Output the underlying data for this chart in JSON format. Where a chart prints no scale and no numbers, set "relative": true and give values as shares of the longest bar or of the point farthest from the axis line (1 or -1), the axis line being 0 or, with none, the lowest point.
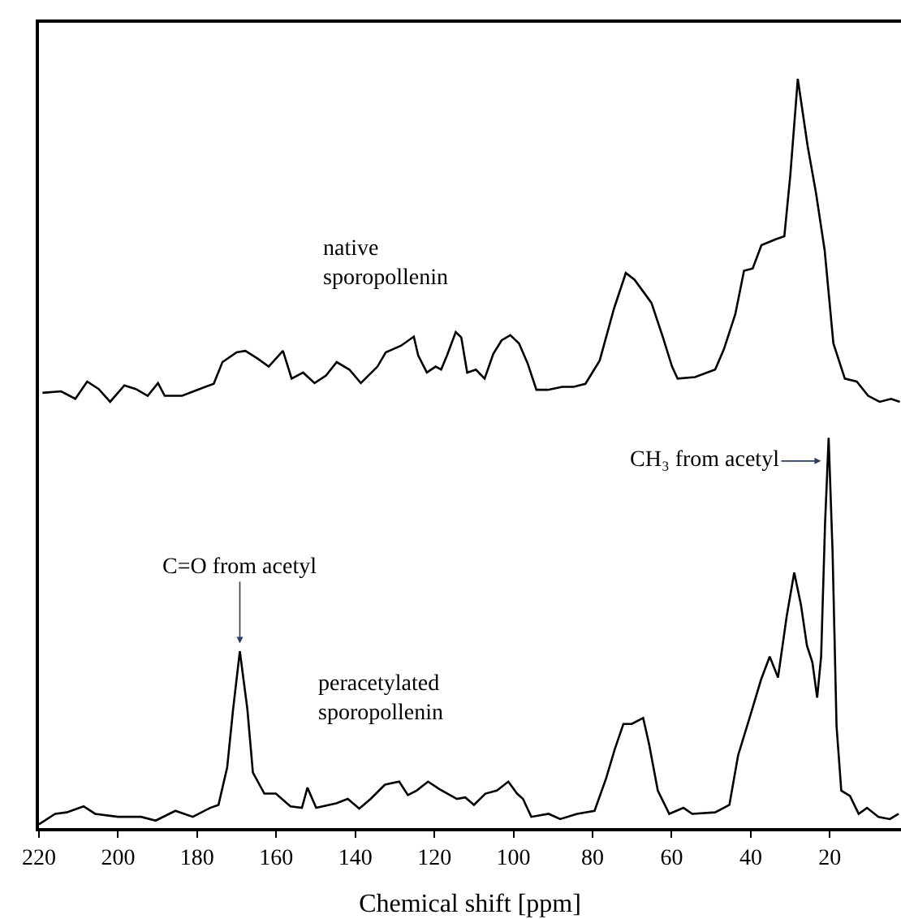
{
  "chart_data": {
    "type": "line",
    "relative": true,
    "xlabel": "Chemical shift [ppm]",
    "xlim": [
      220,
      2
    ],
    "xticks": [
      220,
      200,
      180,
      160,
      140,
      120,
      100,
      80,
      60,
      40,
      20
    ],
    "legend": false,
    "marker": "none",
    "line_style": "solid",
    "series": [
      {
        "name": "native sporopollenin",
        "color": "#000000",
        "x": [
          219.1,
          214.4,
          210.8,
          207.8,
          204.9,
          202.0,
          198.4,
          195.5,
          192.5,
          189.9,
          188.2,
          183.8,
          179.4,
          175.8,
          173.6,
          170.0,
          167.8,
          164.8,
          161.9,
          158.3,
          156.1,
          153.2,
          150.3,
          147.4,
          144.7,
          141.5,
          138.6,
          134.4,
          132.3,
          128.4,
          125.2,
          124.1,
          121.9,
          119.7,
          118.3,
          116.8,
          114.6,
          113.2,
          111.7,
          109.5,
          107.3,
          105.1,
          103.0,
          100.8,
          98.6,
          96.4,
          94.2,
          91.3,
          87.7,
          84.8,
          81.8,
          78.2,
          74.6,
          71.6,
          69.4,
          67.3,
          65.1,
          62.2,
          59.9,
          58.5,
          54.1,
          49.0,
          46.8,
          43.9,
          41.7,
          39.5,
          37.3,
          33.7,
          31.5,
          30.0,
          28.1,
          25.6,
          23.5,
          21.3,
          19.1,
          16.2,
          13.2,
          10.3,
          7.4,
          4.5,
          2.3
        ],
        "values": [
          0.581,
          0.583,
          0.573,
          0.596,
          0.586,
          0.569,
          0.591,
          0.586,
          0.577,
          0.594,
          0.577,
          0.577,
          0.586,
          0.593,
          0.622,
          0.635,
          0.637,
          0.627,
          0.616,
          0.637,
          0.6,
          0.608,
          0.594,
          0.604,
          0.622,
          0.612,
          0.594,
          0.616,
          0.635,
          0.644,
          0.656,
          0.631,
          0.608,
          0.616,
          0.612,
          0.631,
          0.662,
          0.655,
          0.608,
          0.612,
          0.6,
          0.633,
          0.651,
          0.658,
          0.647,
          0.62,
          0.585,
          0.585,
          0.589,
          0.589,
          0.593,
          0.624,
          0.693,
          0.741,
          0.732,
          0.717,
          0.701,
          0.655,
          0.616,
          0.6,
          0.602,
          0.612,
          0.639,
          0.686,
          0.744,
          0.747,
          0.778,
          0.786,
          0.79,
          0.871,
          1.0,
          0.91,
          0.848,
          0.771,
          0.647,
          0.6,
          0.596,
          0.577,
          0.569,
          0.573,
          0.569
        ]
      },
      {
        "name": "peracetylated sporopollenin",
        "color": "#000000",
        "x": [
          220.0,
          215.9,
          213.0,
          208.7,
          205.8,
          200.0,
          194.2,
          190.5,
          185.5,
          181.1,
          176.7,
          174.6,
          172.4,
          170.9,
          169.2,
          167.3,
          165.9,
          163.0,
          160.1,
          156.4,
          153.5,
          152.1,
          149.9,
          144.8,
          141.9,
          139.0,
          136.1,
          132.5,
          128.9,
          126.7,
          124.5,
          121.6,
          118.7,
          114.3,
          112.2,
          110.0,
          107.1,
          104.2,
          101.3,
          99.1,
          97.6,
          95.5,
          91.1,
          88.2,
          83.9,
          79.5,
          76.6,
          74.4,
          72.2,
          70.1,
          67.2,
          65.7,
          63.5,
          60.6,
          57.0,
          54.8,
          49.0,
          45.4,
          43.2,
          40.3,
          37.4,
          35.2,
          33.1,
          30.9,
          29.0,
          27.3,
          25.8,
          24.4,
          23.2,
          22.2,
          21.2,
          20.3,
          19.3,
          18.3,
          17.1,
          14.9,
          12.7,
          10.6,
          7.7,
          4.8,
          2.6
        ],
        "values": [
          0.005,
          0.019,
          0.021,
          0.029,
          0.019,
          0.015,
          0.015,
          0.01,
          0.023,
          0.015,
          0.027,
          0.031,
          0.081,
          0.159,
          0.236,
          0.159,
          0.074,
          0.046,
          0.046,
          0.029,
          0.027,
          0.054,
          0.027,
          0.033,
          0.039,
          0.026,
          0.039,
          0.058,
          0.062,
          0.044,
          0.05,
          0.062,
          0.052,
          0.039,
          0.041,
          0.031,
          0.046,
          0.05,
          0.062,
          0.046,
          0.039,
          0.015,
          0.019,
          0.012,
          0.019,
          0.023,
          0.066,
          0.105,
          0.139,
          0.139,
          0.147,
          0.112,
          0.05,
          0.019,
          0.027,
          0.019,
          0.021,
          0.031,
          0.097,
          0.147,
          0.198,
          0.229,
          0.201,
          0.283,
          0.341,
          0.298,
          0.244,
          0.221,
          0.174,
          0.229,
          0.407,
          0.521,
          0.368,
          0.136,
          0.05,
          0.043,
          0.019,
          0.027,
          0.015,
          0.012,
          0.019
        ]
      }
    ],
    "annotations": [
      {
        "text": "C=O from acetyl",
        "x": 169.2,
        "y": 0.24
      },
      {
        "text": "CH₃ from acetyl",
        "x": 21.0,
        "y": 0.49
      }
    ]
  }
}
